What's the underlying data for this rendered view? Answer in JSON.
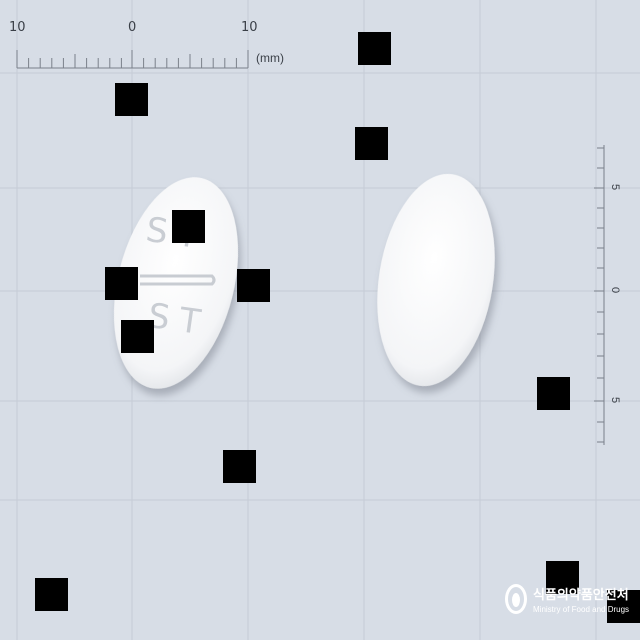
{
  "ruler_top": {
    "labels": [
      "10",
      "0",
      "10"
    ],
    "unit": "(mm)"
  },
  "ruler_right": {
    "labels": [
      "5",
      "0",
      "5"
    ]
  },
  "pills": [
    {
      "shape": "round-oblong",
      "color": "#ffffff",
      "imprint_top": "ST",
      "imprint_bottom": "ST",
      "score_line": true,
      "side": "front"
    },
    {
      "shape": "round-oblong",
      "color": "#ffffff",
      "side": "back",
      "imprint_top": "",
      "imprint_bottom": "",
      "score_line": false
    }
  ],
  "watermark": {
    "korean": "식품의약품안전처",
    "english": "Ministry of Food and Drugs"
  },
  "colors": {
    "background": "#d7dde6",
    "grid": "#c4cad4",
    "ruler": "#6b7078",
    "redaction": "#000000"
  },
  "redaction_boxes": 12
}
